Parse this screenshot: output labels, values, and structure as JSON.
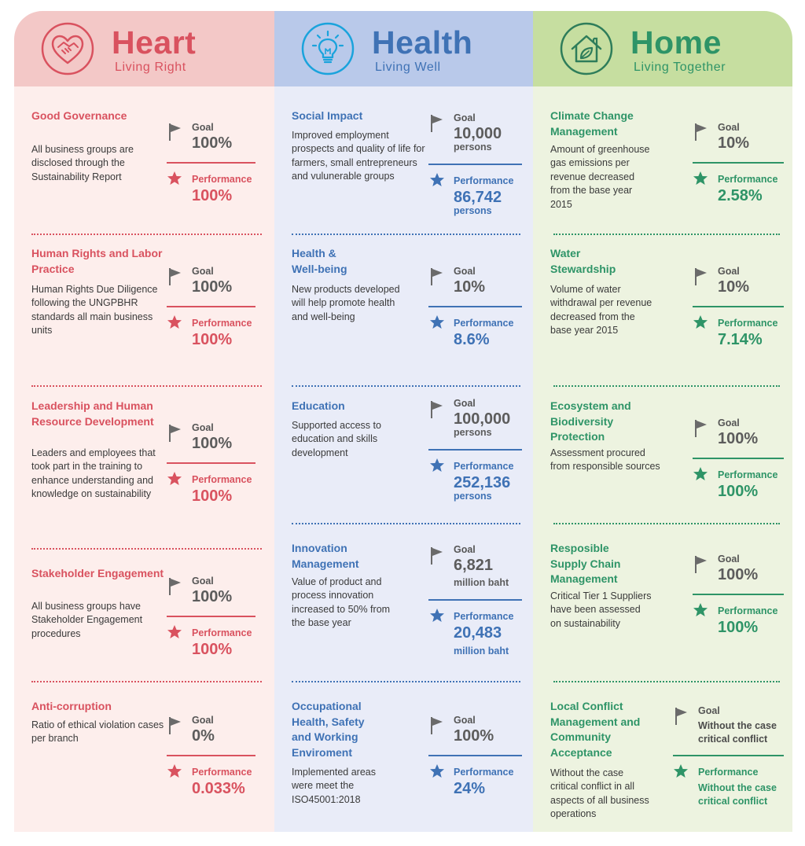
{
  "colors": {
    "heart": "#d9525f",
    "health": "#3f72b5",
    "home": "#2e9467",
    "neutral": "#5c5c5c"
  },
  "columns": [
    {
      "key": "heart",
      "icon": "heart-handshake-icon",
      "title": "Heart",
      "subtitle": "Living Right",
      "items": [
        {
          "title": "Good Governance",
          "description": "All business groups are disclosed through the Sustainability Report",
          "goal_label": "Goal",
          "goal": "100%",
          "performance_label": "Performance",
          "performance": "100%"
        },
        {
          "title": "Human Rights and Labor Practice",
          "description": "Human Rights Due Diligence following the UNGPBHR standards all main business units",
          "goal_label": "Goal",
          "goal": "100%",
          "performance_label": "Performance",
          "performance": "100%"
        },
        {
          "title": "Leadership and Human Resource Development",
          "description": "Leaders and employees that took part in the training to enhance understanding and knowledge on sustainability",
          "goal_label": "Goal",
          "goal": "100%",
          "performance_label": "Performance",
          "performance": "100%"
        },
        {
          "title": "Stakeholder Engagement",
          "description": "All business groups have Stakeholder Engagement procedures",
          "goal_label": "Goal",
          "goal": "100%",
          "performance_label": "Performance",
          "performance": "100%"
        },
        {
          "title": "Anti-corruption",
          "description": "Ratio of ethical violation cases per branch",
          "goal_label": "Goal",
          "goal": "0%",
          "performance_label": "Performance",
          "performance": "0.033%"
        }
      ]
    },
    {
      "key": "health",
      "icon": "lightbulb-icon",
      "title": "Health",
      "subtitle": "Living Well",
      "items": [
        {
          "title": "Social Impact",
          "description": "Improved employment prospects and quality of life for farmers, small entrepreneurs and vulunerable groups",
          "goal_label": "Goal",
          "goal": "10,000",
          "goal_unit": "persons",
          "performance_label": "Performance",
          "performance": "86,742",
          "performance_unit": "persons"
        },
        {
          "title": "Health & Well-being",
          "description": "New products developed will help promote health and well-being",
          "goal_label": "Goal",
          "goal": "10%",
          "performance_label": "Performance",
          "performance": "8.6%"
        },
        {
          "title": "Education",
          "description": "Supported access to education and skills development",
          "goal_label": "Goal",
          "goal": "100,000",
          "goal_unit": "persons",
          "performance_label": "Performance",
          "performance": "252,136",
          "performance_unit": "persons"
        },
        {
          "title": "Innovation Management",
          "description": "Value of product and process innovation increased to 50% from the base year",
          "goal_label": "Goal",
          "goal": "6,821",
          "goal_unit": "million baht",
          "performance_label": "Performance",
          "performance": "20,483",
          "performance_unit": "million baht"
        },
        {
          "title": "Occupational Health, Safety and Working Enviroment",
          "description": "Implemented areas were meet the ISO45001:2018",
          "goal_label": "Goal",
          "goal": "100%",
          "performance_label": "Performance",
          "performance": "24%"
        }
      ]
    },
    {
      "key": "home",
      "icon": "house-leaf-icon",
      "title": "Home",
      "subtitle": "Living Together",
      "items": [
        {
          "title": "Climate Change Management",
          "description": "Amount of greenhouse gas emissions per revenue decreased from the base year 2015",
          "goal_label": "Goal",
          "goal": "10%",
          "performance_label": "Performance",
          "performance": "2.58%"
        },
        {
          "title": "Water Stewardship",
          "description": "Volume of water withdrawal per revenue decreased from the base year 2015",
          "goal_label": "Goal",
          "goal": "10%",
          "performance_label": "Performance",
          "performance": "7.14%"
        },
        {
          "title": "Ecosystem and Biodiversity Protection",
          "description": "Assessment procured from responsible sources",
          "goal_label": "Goal",
          "goal": "100%",
          "performance_label": "Performance",
          "performance": "100%"
        },
        {
          "title": "Resposible Supply Chain Management",
          "description": "Critical Tier 1 Suppliers have been assessed on sustainability",
          "goal_label": "Goal",
          "goal": "100%",
          "performance_label": "Performance",
          "performance": "100%"
        },
        {
          "title": "Local Conflict Management and Community Acceptance",
          "description": "Without the case critical conflict in all aspects of all business operations",
          "goal_label": "Goal",
          "goal": "Without the case critical conflict",
          "performance_label": "Performance",
          "performance": "Without the case critical conflict"
        }
      ]
    }
  ]
}
